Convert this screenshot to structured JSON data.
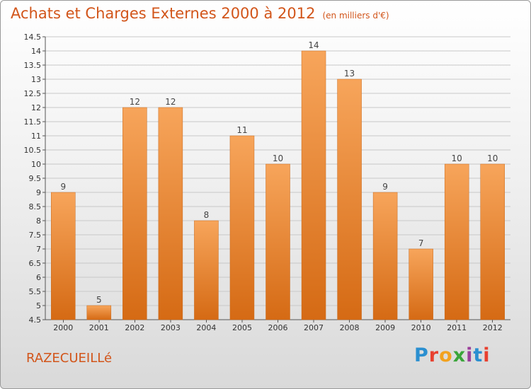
{
  "chart_data": {
    "type": "bar",
    "title": "Achats et Charges Externes 2000 à 2012",
    "unit": "(en milliers d'€)",
    "categories": [
      "2000",
      "2001",
      "2002",
      "2003",
      "2004",
      "2005",
      "2006",
      "2007",
      "2008",
      "2009",
      "2010",
      "2011",
      "2012"
    ],
    "values": [
      9,
      5,
      12,
      12,
      8,
      11,
      10,
      14,
      13,
      9,
      7,
      10,
      10
    ],
    "value_labels": [
      "9",
      "5",
      "12",
      "12",
      "8",
      "11",
      "10",
      "14",
      "13",
      "9",
      "7",
      "10",
      "10"
    ],
    "ylim": [
      4.5,
      14.5
    ],
    "yticks": [
      4.5,
      5,
      5.5,
      6,
      6.5,
      7,
      7.5,
      8,
      8.5,
      9,
      9.5,
      10,
      10.5,
      11,
      11.5,
      12,
      12.5,
      13,
      13.5,
      14,
      14.5
    ],
    "ytick_labels": [
      "4.5",
      "5",
      "5.5",
      "6",
      "6.5",
      "7",
      "7.5",
      "8",
      "8.5",
      "9",
      "9.5",
      "10",
      "10.5",
      "11",
      "11.5",
      "12",
      "12.5",
      "13",
      "13.5",
      "14",
      "14.5"
    ],
    "grid": true,
    "bar_color": "#f0933a"
  },
  "commune": "RAZECUEILLé",
  "logo": {
    "letters": [
      "P",
      "r",
      "o",
      "x",
      "i",
      "t",
      "i"
    ],
    "colors": [
      "#2a8fd0",
      "#e8402f",
      "#f2a21f",
      "#3aa53a",
      "#9a3f9a",
      "#2a8fd0",
      "#e8402f"
    ]
  }
}
